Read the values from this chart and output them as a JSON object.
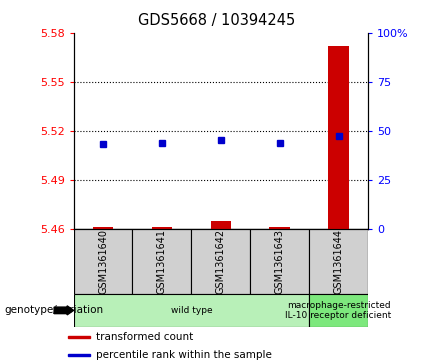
{
  "title": "GDS5668 / 10394245",
  "samples": [
    "GSM1361640",
    "GSM1361641",
    "GSM1361642",
    "GSM1361643",
    "GSM1361644"
  ],
  "transformed_counts": [
    5.461,
    5.461,
    5.465,
    5.461,
    5.572
  ],
  "percentile_ranks": [
    43.0,
    43.5,
    45.0,
    43.5,
    47.5
  ],
  "ylim_left": [
    5.46,
    5.58
  ],
  "ylim_right": [
    0,
    100
  ],
  "yticks_left": [
    5.46,
    5.49,
    5.52,
    5.55,
    5.58
  ],
  "yticks_right": [
    0,
    25,
    50,
    75,
    100
  ],
  "ytick_labels_left": [
    "5.46",
    "5.49",
    "5.52",
    "5.55",
    "5.58"
  ],
  "ytick_labels_right": [
    "0",
    "25",
    "50",
    "75",
    "100%"
  ],
  "hlines": [
    5.49,
    5.52,
    5.55
  ],
  "bar_color": "#cc0000",
  "point_color": "#0000cc",
  "genotype_groups": [
    {
      "label": "wild type",
      "samples": [
        0,
        1,
        2,
        3
      ],
      "color": "#b8f0b8"
    },
    {
      "label": "macrophage-restricted\nIL-10 receptor deficient",
      "samples": [
        4
      ],
      "color": "#7de87d"
    }
  ],
  "legend_items": [
    {
      "label": "transformed count",
      "color": "#cc0000"
    },
    {
      "label": "percentile rank within the sample",
      "color": "#0000cc"
    }
  ],
  "genotype_label": "genotype/variation",
  "plot_bg": "#ffffff",
  "bar_width": 0.35,
  "sample_area_color": "#d0d0d0",
  "sample_area_bg": "#c8c8c8"
}
